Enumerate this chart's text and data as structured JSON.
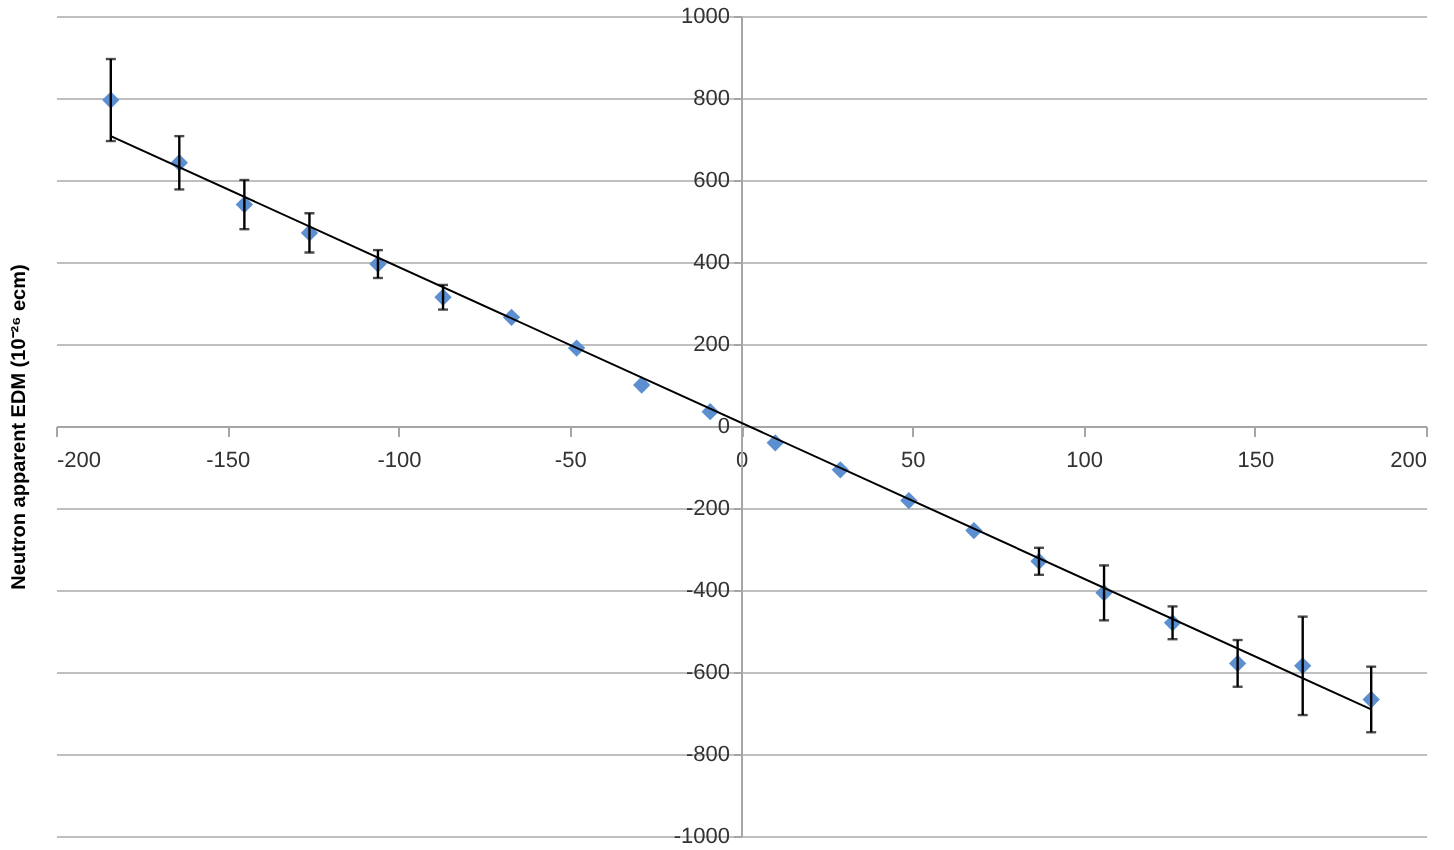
{
  "chart_data": {
    "type": "scatter",
    "ylabel": "Neutron apparent EDM (10⁻²⁶ ecm)",
    "xlim": [
      -200,
      200
    ],
    "xticks": [
      -200,
      -150,
      -100,
      -50,
      0,
      50,
      100,
      150,
      200
    ],
    "ylim": [
      -1000,
      1000
    ],
    "yticks": [
      -1000,
      -800,
      -600,
      -400,
      -200,
      0,
      200,
      400,
      600,
      800,
      1000
    ],
    "grid": "y",
    "series": [
      {
        "color": "#5b8fd0",
        "marker": "diamond",
        "x": [
          -184,
          -164,
          -145,
          -126,
          -106,
          -87,
          -67,
          -48,
          -29,
          -9,
          10,
          29,
          49,
          68,
          87,
          106,
          126,
          145,
          164,
          184
        ],
        "values": [
          795,
          642,
          540,
          471,
          395,
          314,
          265,
          190,
          100,
          35,
          -41,
          -107,
          -182,
          -255,
          -330,
          -407,
          -480,
          -579,
          -585,
          -667
        ],
        "errors": [
          100,
          65,
          60,
          48,
          34,
          30,
          null,
          null,
          null,
          null,
          null,
          null,
          null,
          null,
          33,
          67,
          40,
          57,
          120,
          80
        ]
      },
      {
        "type": "line",
        "color": "#000000",
        "marker": "none",
        "x": [
          -184,
          184
        ],
        "values": [
          707,
          -691
        ]
      }
    ]
  }
}
